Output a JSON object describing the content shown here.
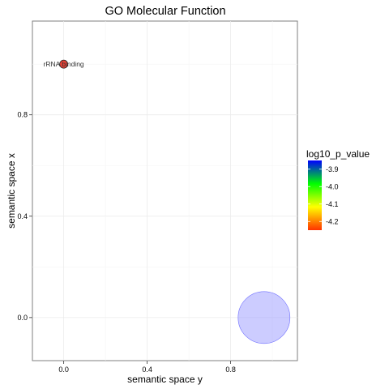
{
  "chart_data": {
    "type": "scatter",
    "title": "GO Molecular Function",
    "xlabel": "semantic space y",
    "ylabel": "semantic space x",
    "xlim": [
      -0.15,
      1.12
    ],
    "ylim": [
      -0.17,
      1.17
    ],
    "x_ticks": [
      0.0,
      0.4,
      0.8
    ],
    "y_ticks": [
      0.0,
      0.4,
      0.8
    ],
    "x_tick_labels": [
      "0.0",
      "0.4",
      "0.8"
    ],
    "y_tick_labels": [
      "0.0",
      "0.4",
      "0.8"
    ],
    "grid": true,
    "points": [
      {
        "label": "rRNA binding",
        "x": 0.0,
        "y": 1.0,
        "color_value": -4.22,
        "size": 1,
        "color": "#e6372b"
      },
      {
        "label": "",
        "x": 0.96,
        "y": 0.0,
        "color_value": -3.85,
        "size": 10,
        "color": "#8f8fff"
      }
    ],
    "legend": {
      "title": "log10_p_value",
      "position": "right",
      "ticks": [
        -3.9,
        -4.0,
        -4.1,
        -4.2
      ],
      "tick_labels": [
        "-3.9",
        "-4.0",
        "-4.1",
        "-4.2"
      ],
      "range": [
        -4.25,
        -3.85
      ],
      "gradient": [
        "#ff3300",
        "#ffff00",
        "#00ff00",
        "#0000ff"
      ]
    }
  }
}
